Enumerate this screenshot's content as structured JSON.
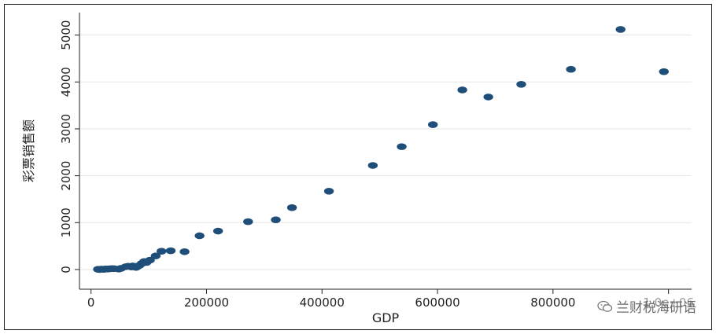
{
  "chart_data": {
    "type": "scatter",
    "title": "",
    "xlabel": "GDP",
    "ylabel": "彩票销售额",
    "xlim": [
      -20000,
      1040000
    ],
    "ylim": [
      -420,
      5480
    ],
    "x_ticks": [
      0,
      200000,
      400000,
      600000,
      800000,
      1000000
    ],
    "x_tick_labels": [
      "0",
      "200000",
      "400000",
      "600000",
      "800000",
      "1.0e+06"
    ],
    "y_ticks": [
      0,
      1000,
      2000,
      3000,
      4000,
      5000
    ],
    "y_tick_labels": [
      "0",
      "1000",
      "2000",
      "3000",
      "4000",
      "5000"
    ],
    "grid": true,
    "marker_color": "#1f4e79",
    "points": [
      {
        "x": 12000,
        "y": 5
      },
      {
        "x": 15000,
        "y": 0
      },
      {
        "x": 18000,
        "y": 8
      },
      {
        "x": 22000,
        "y": 3
      },
      {
        "x": 25000,
        "y": 12
      },
      {
        "x": 28000,
        "y": 10
      },
      {
        "x": 32000,
        "y": 15
      },
      {
        "x": 36000,
        "y": 20
      },
      {
        "x": 40000,
        "y": 18
      },
      {
        "x": 48000,
        "y": 10
      },
      {
        "x": 52000,
        "y": 25
      },
      {
        "x": 60000,
        "y": 60
      },
      {
        "x": 64000,
        "y": 70
      },
      {
        "x": 70000,
        "y": 55
      },
      {
        "x": 72000,
        "y": 75
      },
      {
        "x": 78000,
        "y": 45
      },
      {
        "x": 80000,
        "y": 65
      },
      {
        "x": 84000,
        "y": 90
      },
      {
        "x": 88000,
        "y": 130
      },
      {
        "x": 92000,
        "y": 170
      },
      {
        "x": 96000,
        "y": 150
      },
      {
        "x": 102000,
        "y": 200
      },
      {
        "x": 112000,
        "y": 290
      },
      {
        "x": 122000,
        "y": 390
      },
      {
        "x": 138000,
        "y": 400
      },
      {
        "x": 162000,
        "y": 380
      },
      {
        "x": 188000,
        "y": 720
      },
      {
        "x": 220000,
        "y": 820
      },
      {
        "x": 272000,
        "y": 1020
      },
      {
        "x": 320000,
        "y": 1060
      },
      {
        "x": 348000,
        "y": 1320
      },
      {
        "x": 412000,
        "y": 1670
      },
      {
        "x": 488000,
        "y": 2220
      },
      {
        "x": 538000,
        "y": 2620
      },
      {
        "x": 592000,
        "y": 3090
      },
      {
        "x": 643000,
        "y": 3830
      },
      {
        "x": 688000,
        "y": 3680
      },
      {
        "x": 745000,
        "y": 3950
      },
      {
        "x": 831000,
        "y": 4270
      },
      {
        "x": 917000,
        "y": 5120
      },
      {
        "x": 992000,
        "y": 4220
      }
    ]
  },
  "watermark": {
    "text": "兰财税海研语",
    "icon": "wechat-icon"
  }
}
